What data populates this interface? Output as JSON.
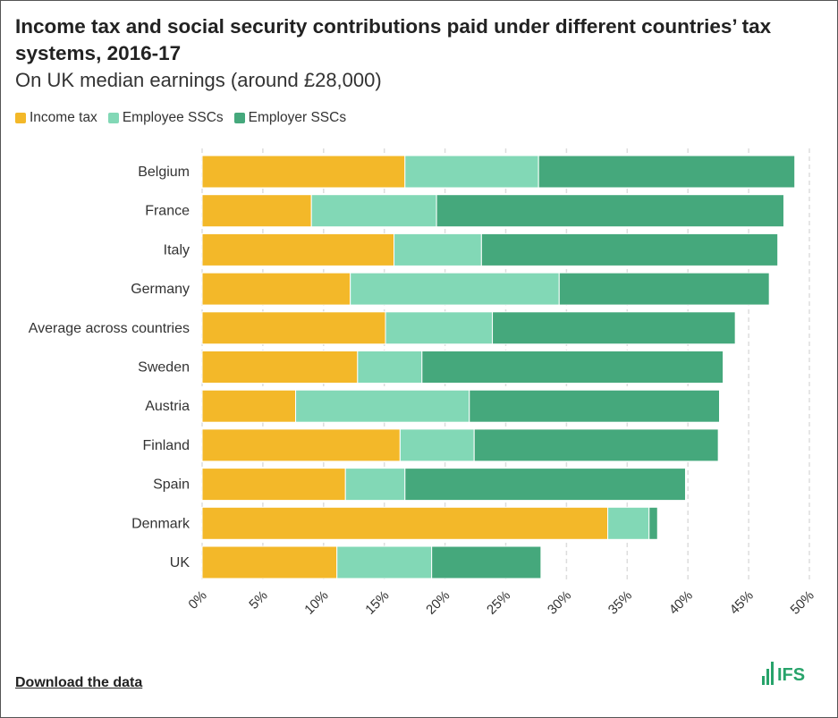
{
  "header": {
    "title": "Income tax and social security contributions paid under different countries’ tax systems, 2016-17",
    "subtitle": "On UK median earnings (around £28,000)"
  },
  "legend": {
    "items": [
      {
        "label": "Income tax",
        "color": "#f3b829"
      },
      {
        "label": "Employee SSCs",
        "color": "#82d8b6"
      },
      {
        "label": "Employer SSCs",
        "color": "#45a87c"
      }
    ]
  },
  "footer": {
    "download_label": "Download the data",
    "logo_text": "IFS",
    "logo_icon": "ifs-bar-logo-icon"
  },
  "chart_data": {
    "type": "bar",
    "orientation": "horizontal",
    "stacked": true,
    "categories": [
      "Belgium",
      "France",
      "Italy",
      "Germany",
      "Average across countries",
      "Sweden",
      "Austria",
      "Finland",
      "Spain",
      "Denmark",
      "UK"
    ],
    "series": [
      {
        "name": "Income tax",
        "color": "#f3b829",
        "values": [
          16.7,
          9.0,
          15.8,
          12.2,
          15.1,
          12.8,
          7.7,
          16.3,
          11.8,
          33.4,
          11.1
        ]
      },
      {
        "name": "Employee SSCs",
        "color": "#82d8b6",
        "values": [
          11.0,
          10.3,
          7.2,
          17.2,
          8.8,
          5.3,
          14.3,
          6.1,
          4.9,
          3.4,
          7.8
        ]
      },
      {
        "name": "Employer SSCs",
        "color": "#45a87c",
        "values": [
          21.1,
          28.6,
          24.4,
          17.3,
          20.0,
          24.8,
          20.6,
          20.1,
          23.1,
          0.7,
          9.0
        ]
      }
    ],
    "xlim": [
      0,
      50
    ],
    "xticks": [
      "0%",
      "5%",
      "10%",
      "15%",
      "20%",
      "25%",
      "30%",
      "35%",
      "40%",
      "45%",
      "50%"
    ],
    "xtick_values": [
      0,
      5,
      10,
      15,
      20,
      25,
      30,
      35,
      40,
      45,
      50
    ],
    "grid": "vertical dashed",
    "legend_position": "top-left",
    "xlabel": "",
    "ylabel": ""
  }
}
